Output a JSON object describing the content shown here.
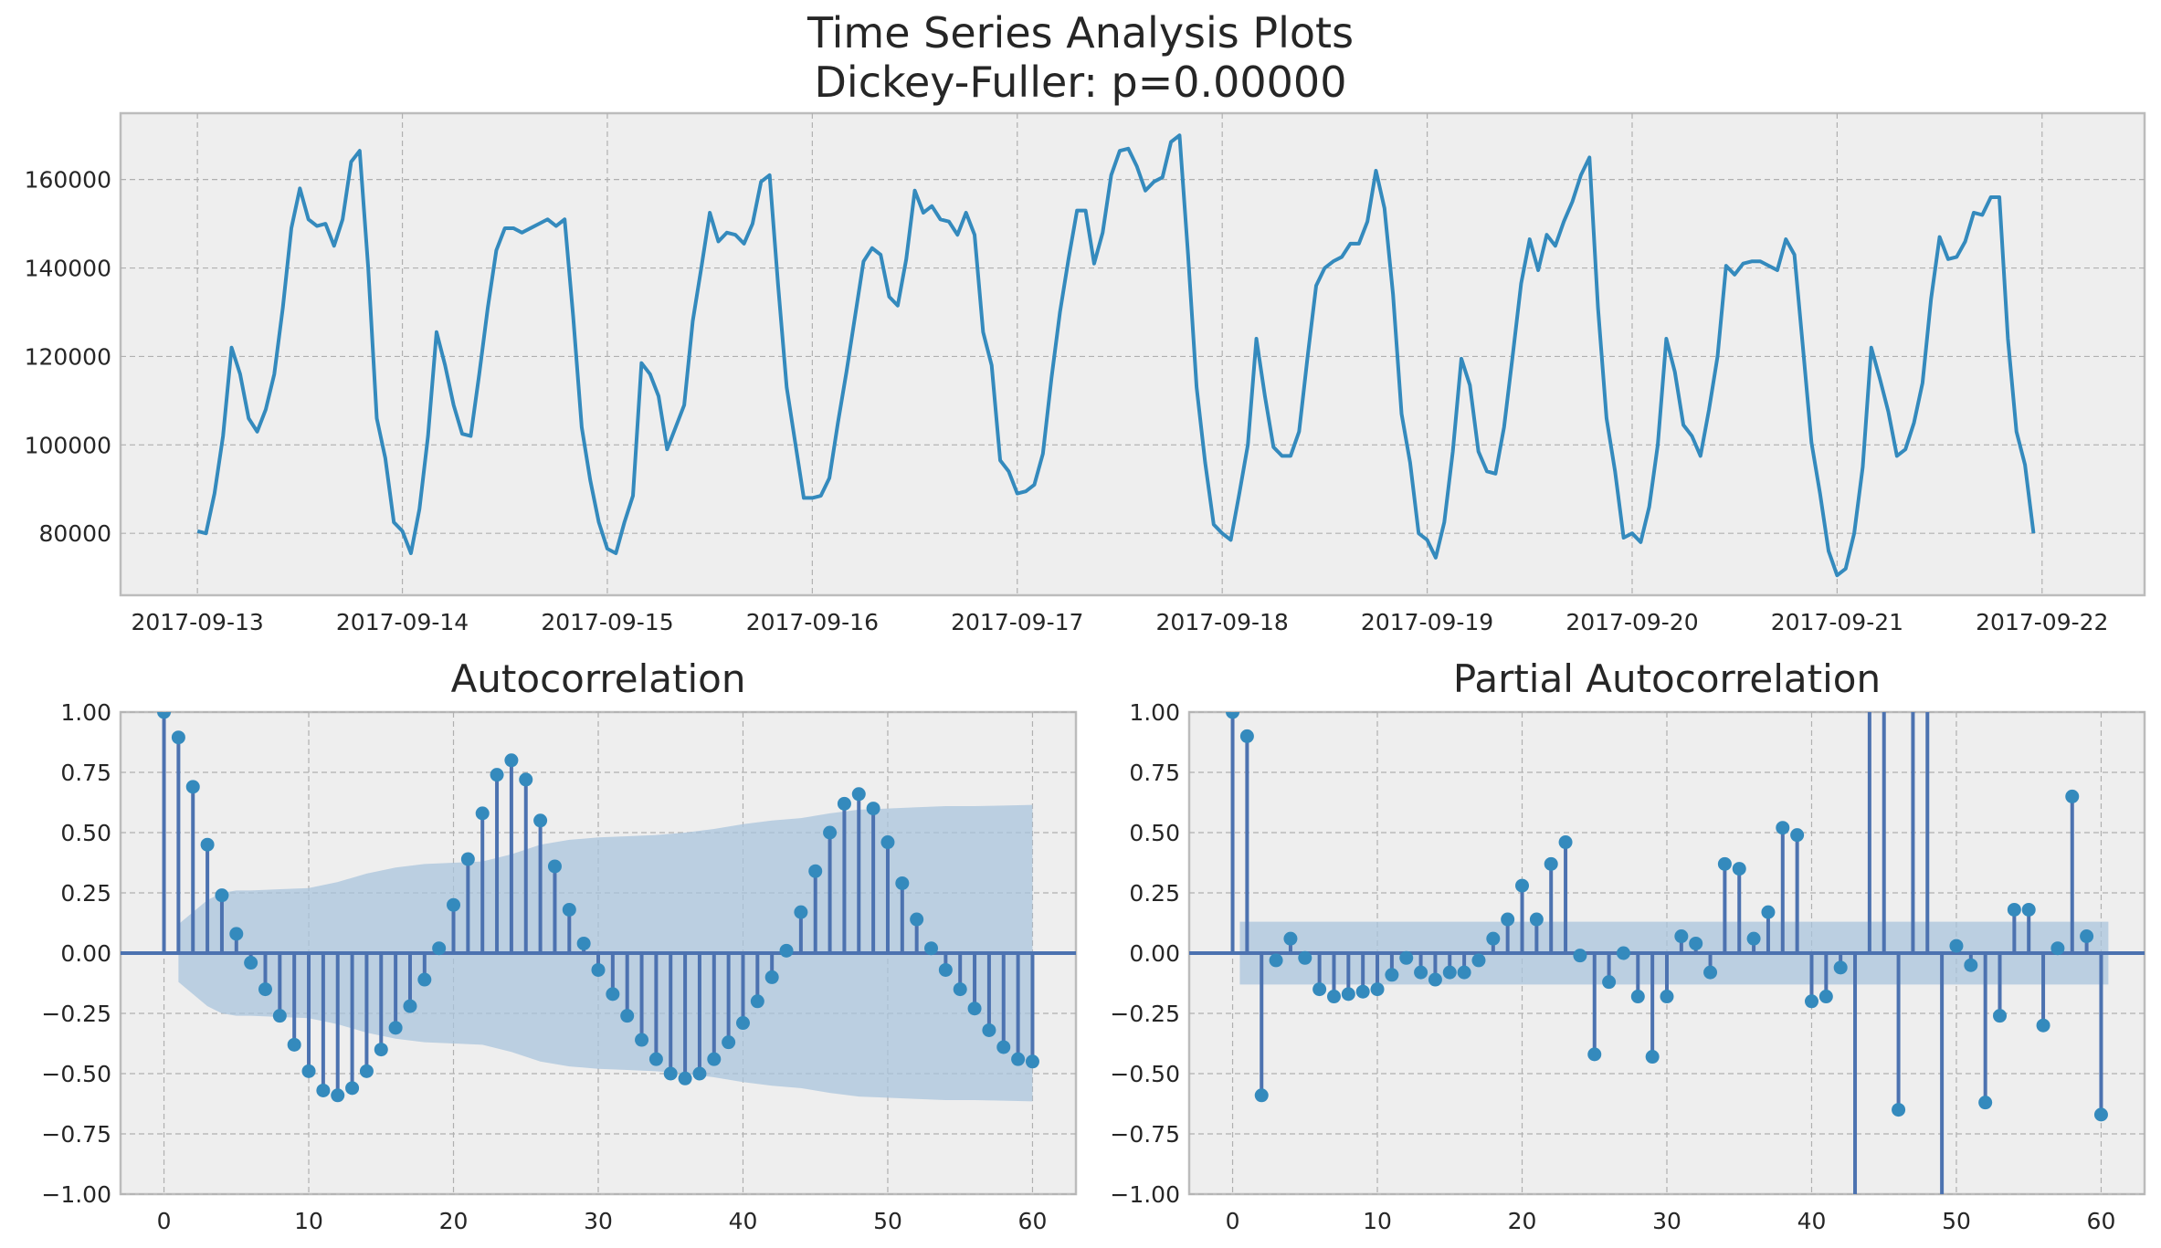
{
  "figure": {
    "suptitle_line1": "Time Series Analysis Plots",
    "suptitle_line2": "Dickey-Fuller: p=0.00000"
  },
  "colors": {
    "axes_bg": "#eeeeee",
    "frame": "#bcbcbc",
    "line": "#348abd",
    "stem": "#4c72b0",
    "marker": "#348abd",
    "ci_band": "#a7c4dc",
    "text": "#262626"
  },
  "chart_data": [
    {
      "type": "line",
      "title": "",
      "xlabel": "",
      "ylabel": "",
      "x_start": "2017-09-13 00:00",
      "x_step_hours": 1,
      "x_ticks": [
        "2017-09-13",
        "2017-09-14",
        "2017-09-15",
        "2017-09-16",
        "2017-09-17",
        "2017-09-18",
        "2017-09-19",
        "2017-09-20",
        "2017-09-21",
        "2017-09-22"
      ],
      "y_ticks": [
        80000,
        100000,
        120000,
        140000,
        160000
      ],
      "xlim": [
        "2017-09-12 15:00",
        "2017-09-22 12:00"
      ],
      "ylim": [
        66000,
        175000
      ],
      "grid": true,
      "series": [
        {
          "values": [
            80500,
            80000,
            89000,
            102000,
            122000,
            116000,
            106000,
            103000,
            108000,
            116000,
            131000,
            149000,
            158000,
            151000,
            149500,
            150000,
            145000,
            151000,
            164000,
            166500,
            140000,
            106000,
            97000,
            82500,
            80500,
            75500,
            85500,
            102000,
            125500,
            118000,
            109000,
            102500,
            102000,
            116000,
            131000,
            144000,
            149000,
            149000,
            148000,
            149000,
            150000,
            151000,
            149500,
            151000,
            129000,
            104000,
            92000,
            82500,
            76500,
            75500,
            82500,
            88500,
            118500,
            116000,
            111000,
            99000,
            104000,
            109000,
            128000,
            140000,
            152500,
            146000,
            148000,
            147500,
            145500,
            150000,
            159500,
            161000,
            136000,
            113000,
            100500,
            88000,
            88000,
            88500,
            92500,
            105000,
            116500,
            129000,
            141500,
            144500,
            143000,
            133500,
            131500,
            142000,
            157500,
            152500,
            154000,
            151000,
            150500,
            147500,
            152500,
            147500,
            125500,
            118000,
            96500,
            94000,
            89000,
            89500,
            91000,
            98000,
            115000,
            130000,
            142000,
            153000,
            153000,
            141000,
            148000,
            161000,
            166500,
            167000,
            163000,
            157500,
            159500,
            160500,
            168500,
            170000,
            143000,
            113000,
            96000,
            82000,
            80000,
            78500,
            89000,
            100000,
            124000,
            111000,
            99500,
            97500,
            97500,
            103000,
            120000,
            136000,
            140000,
            141500,
            142500,
            145500,
            145500,
            150500,
            162000,
            153500,
            134000,
            107000,
            96000,
            80000,
            78500,
            74500,
            82500,
            98500,
            119500,
            113500,
            98500,
            94000,
            93500,
            104000,
            120000,
            136500,
            146500,
            139500,
            147500,
            145000,
            150500,
            155000,
            161000,
            165000,
            131000,
            106000,
            94000,
            79000,
            80000,
            78000,
            86000,
            100000,
            124000,
            116500,
            104500,
            102000,
            97500,
            108000,
            120000,
            140500,
            138500,
            141000,
            141500,
            141500,
            140500,
            139500,
            146500,
            143000,
            122000,
            100500,
            89000,
            76000,
            70500,
            72000,
            80000,
            95000,
            122000,
            115000,
            107500,
            97500,
            99000,
            105000,
            114000,
            133000,
            147000,
            142000,
            142500,
            146000,
            152500,
            152000,
            156000,
            156000,
            124000,
            103000,
            95500,
            80000
          ]
        }
      ]
    },
    {
      "type": "stem",
      "title": "Autocorrelation",
      "xlabel": "",
      "ylabel": "",
      "x_ticks": [
        0,
        10,
        20,
        30,
        40,
        50,
        60
      ],
      "y_ticks": [
        "−1.00",
        "−0.75",
        "−0.50",
        "−0.25",
        "0.00",
        "0.25",
        "0.50",
        "0.75",
        "1.00"
      ],
      "xlim": [
        -3,
        63
      ],
      "ylim": [
        -1,
        1
      ],
      "grid": true,
      "lags": [
        0,
        1,
        2,
        3,
        4,
        5,
        6,
        7,
        8,
        9,
        10,
        11,
        12,
        13,
        14,
        15,
        16,
        17,
        18,
        19,
        20,
        21,
        22,
        23,
        24,
        25,
        26,
        27,
        28,
        29,
        30,
        31,
        32,
        33,
        34,
        35,
        36,
        37,
        38,
        39,
        40,
        41,
        42,
        43,
        44,
        45,
        46,
        47,
        48,
        49,
        50,
        51,
        52,
        53,
        54,
        55,
        56,
        57,
        58,
        59,
        60
      ],
      "values": [
        1.0,
        0.895,
        0.69,
        0.45,
        0.24,
        0.08,
        -0.04,
        -0.15,
        -0.26,
        -0.38,
        -0.49,
        -0.57,
        -0.59,
        -0.56,
        -0.49,
        -0.4,
        -0.31,
        -0.22,
        -0.11,
        0.02,
        0.2,
        0.39,
        0.58,
        0.74,
        0.8,
        0.72,
        0.55,
        0.36,
        0.18,
        0.04,
        -0.07,
        -0.17,
        -0.26,
        -0.36,
        -0.44,
        -0.5,
        -0.52,
        -0.5,
        -0.44,
        -0.37,
        -0.29,
        -0.2,
        -0.1,
        0.01,
        0.17,
        0.34,
        0.5,
        0.62,
        0.66,
        0.6,
        0.46,
        0.29,
        0.14,
        0.02,
        -0.07,
        -0.15,
        -0.23,
        -0.32,
        -0.39,
        -0.44,
        -0.45
      ],
      "confidence_band": {
        "lags": [
          1,
          2,
          3,
          4,
          5,
          6,
          8,
          10,
          12,
          14,
          16,
          18,
          20,
          22,
          24,
          26,
          28,
          30,
          32,
          34,
          36,
          38,
          40,
          42,
          44,
          46,
          48,
          50,
          52,
          54,
          56,
          58,
          60
        ],
        "upper": [
          0.12,
          0.17,
          0.22,
          0.25,
          0.26,
          0.26,
          0.265,
          0.27,
          0.295,
          0.33,
          0.355,
          0.37,
          0.375,
          0.38,
          0.41,
          0.45,
          0.47,
          0.48,
          0.485,
          0.49,
          0.5,
          0.515,
          0.535,
          0.55,
          0.56,
          0.58,
          0.595,
          0.6,
          0.605,
          0.61,
          0.61,
          0.612,
          0.615
        ]
      }
    },
    {
      "type": "stem",
      "title": "Partial Autocorrelation",
      "xlabel": "",
      "ylabel": "",
      "x_ticks": [
        0,
        10,
        20,
        30,
        40,
        50,
        60
      ],
      "y_ticks": [
        "−1.00",
        "−0.75",
        "−0.50",
        "−0.25",
        "0.00",
        "0.25",
        "0.50",
        "0.75",
        "1.00"
      ],
      "xlim": [
        -3,
        63
      ],
      "ylim": [
        -1,
        1
      ],
      "grid": true,
      "lags": [
        0,
        1,
        2,
        3,
        4,
        5,
        6,
        7,
        8,
        9,
        10,
        11,
        12,
        13,
        14,
        15,
        16,
        17,
        18,
        19,
        20,
        21,
        22,
        23,
        24,
        25,
        26,
        27,
        28,
        29,
        30,
        31,
        32,
        33,
        34,
        35,
        36,
        37,
        38,
        39,
        40,
        41,
        42,
        43,
        44,
        45,
        46,
        47,
        48,
        49,
        50,
        51,
        52,
        53,
        54,
        55,
        56,
        57,
        58,
        59,
        60
      ],
      "values": [
        1.0,
        0.9,
        -0.59,
        -0.03,
        0.06,
        -0.02,
        -0.15,
        -0.18,
        -0.17,
        -0.16,
        -0.15,
        -0.09,
        -0.02,
        -0.08,
        -0.11,
        -0.08,
        -0.08,
        -0.03,
        0.06,
        0.14,
        0.28,
        0.14,
        0.37,
        0.46,
        -0.01,
        -0.42,
        -0.12,
        0.0,
        -0.18,
        -0.43,
        -0.18,
        0.07,
        0.04,
        -0.08,
        0.37,
        0.35,
        0.06,
        0.17,
        0.52,
        0.49,
        -0.2,
        -0.18,
        -0.06,
        -1.15,
        1.2,
        1.2,
        -0.65,
        1.2,
        1.2,
        -1.1,
        0.03,
        -0.05,
        -0.62,
        -0.26,
        0.18,
        0.18,
        -0.3,
        0.02,
        0.65,
        0.07,
        -0.67
      ],
      "confidence_band": {
        "lags": [
          0.5,
          60.5
        ],
        "upper": [
          0.13,
          0.13
        ]
      }
    }
  ]
}
